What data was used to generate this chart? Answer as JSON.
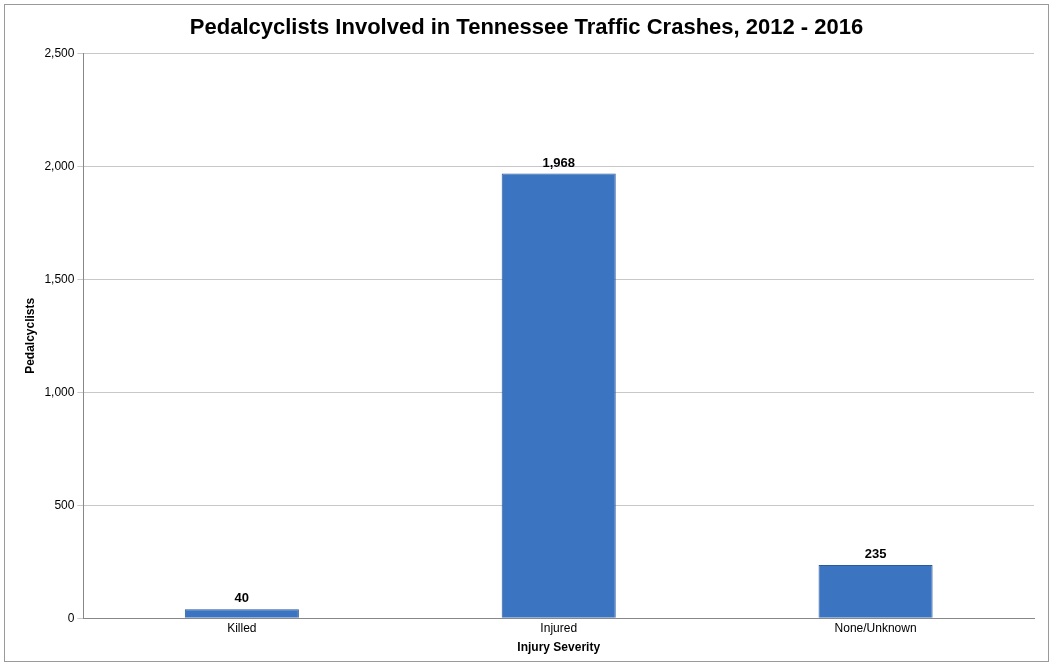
{
  "chart_data": {
    "type": "bar",
    "title": "Pedalcyclists Involved in Tennessee Traffic Crashes, 2012 - 2016",
    "xlabel": "Injury Severity",
    "ylabel": "Pedalcyclists",
    "categories": [
      "Killed",
      "Injured",
      "None/Unknown"
    ],
    "values": [
      40,
      1968,
      235
    ],
    "value_labels": [
      "40",
      "1,968",
      "235"
    ],
    "color": "#3b74c0",
    "ylim": [
      0,
      2500
    ],
    "yticks": [
      {
        "value": 0,
        "label": "0"
      },
      {
        "value": 500,
        "label": "500"
      },
      {
        "value": 1000,
        "label": "1,000"
      },
      {
        "value": 1500,
        "label": "1,500"
      },
      {
        "value": 2000,
        "label": "2,000"
      },
      {
        "value": 2500,
        "label": "2,500"
      }
    ],
    "grid": "y",
    "legend": false
  }
}
